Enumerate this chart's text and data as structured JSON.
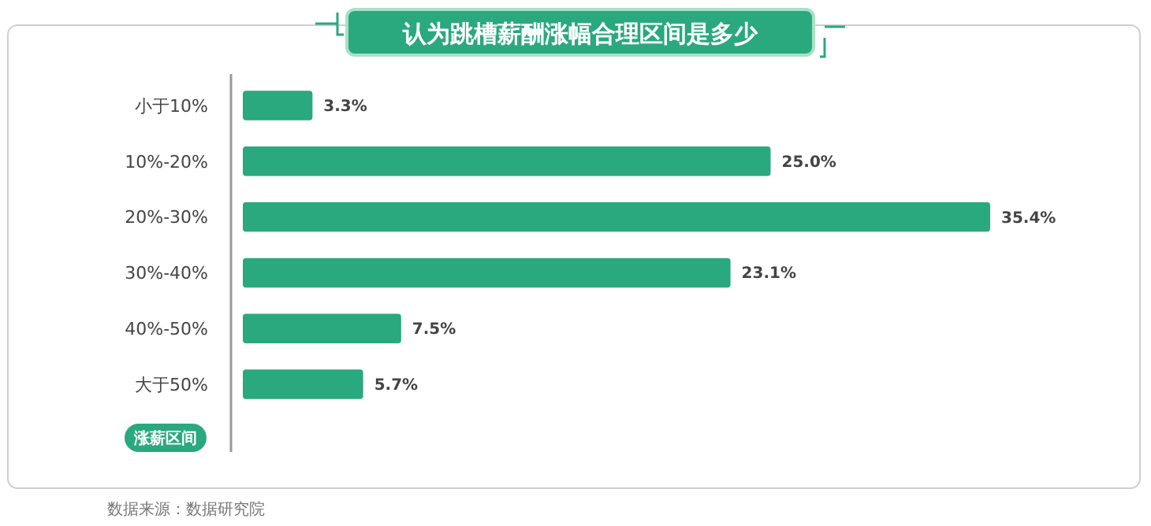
{
  "chart_data": {
    "type": "bar",
    "orientation": "horizontal",
    "title": "认为跳槽薪酬涨幅合理区间是多少",
    "ylabel": "涨薪区间",
    "categories": [
      "小于10%",
      "10%-20%",
      "20%-30%",
      "30%-40%",
      "40%-50%",
      "大于50%"
    ],
    "values": [
      3.3,
      25.0,
      35.4,
      23.1,
      7.5,
      5.7
    ],
    "value_labels": [
      "3.3%",
      "25.0%",
      "35.4%",
      "23.1%",
      "7.5%",
      "5.7%"
    ],
    "color": "#2aa87e",
    "annotations": [
      "数据来源：数据研究院"
    ]
  }
}
